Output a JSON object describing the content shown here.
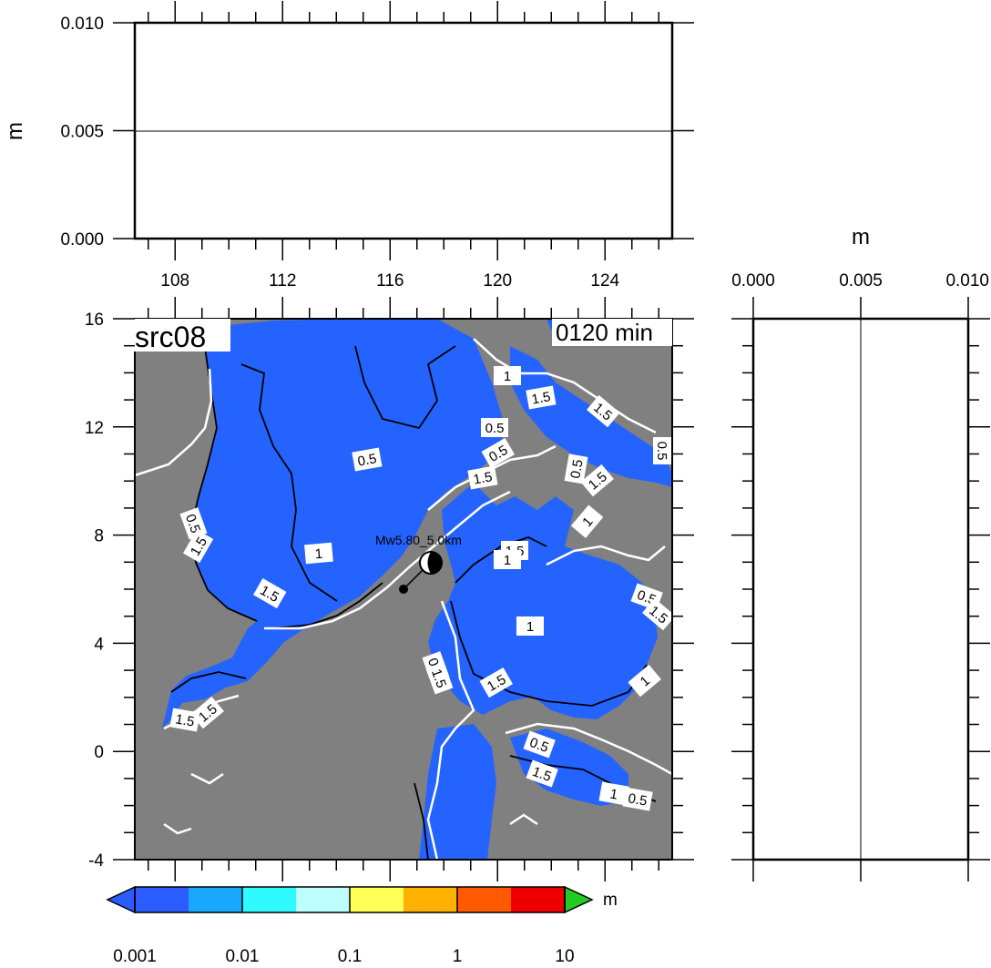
{
  "chart_data": [
    {
      "type": "line",
      "panel": "top profile",
      "ylabel": "m",
      "ylim": [
        0,
        0.01
      ],
      "yticks": [
        "0.000",
        "0.005",
        "0.010"
      ],
      "xlim": [
        106.5,
        126.5
      ],
      "xticks": [
        "108",
        "112",
        "116",
        "120",
        "124"
      ],
      "series": [
        {
          "x": [
            106.5,
            126.5
          ],
          "values": [
            0,
            0
          ]
        }
      ]
    },
    {
      "type": "heatmap",
      "panel": "main map",
      "title": "src08",
      "time_label": "0120 min",
      "xlim": [
        106.5,
        126.5
      ],
      "ylim": [
        -4,
        16
      ],
      "yticks": [
        "16",
        "12",
        "8",
        "4",
        "0",
        "-4"
      ],
      "epicenter_label": "Mw5.80_5.0km",
      "epicenter": {
        "lon": 116.4,
        "lat": 6.0
      },
      "contour_labels": [
        "0.5",
        "1",
        "1.5"
      ],
      "colors": {
        "sea": "#2563ff",
        "land": "#808080"
      }
    },
    {
      "type": "line",
      "panel": "right profile",
      "xlabel": "m",
      "xlim": [
        0,
        0.01
      ],
      "xticks": [
        "0.000",
        "0.005",
        "0.010"
      ],
      "ylim": [
        -4,
        16
      ],
      "series": [
        {
          "x": [
            0,
            0
          ],
          "values": [
            -4,
            16
          ]
        }
      ]
    },
    {
      "type": "colorbar",
      "unit": "m",
      "scale": "log",
      "ticks": [
        "0.001",
        "0.01",
        "0.1",
        "1",
        "10"
      ],
      "colors": [
        "#2a5cff",
        "#1aa8ff",
        "#2efaff",
        "#bdfdfd",
        "#ffff55",
        "#ffb000",
        "#ff5a00",
        "#ee0000",
        "#22cc22",
        "#2a5cff"
      ]
    }
  ]
}
